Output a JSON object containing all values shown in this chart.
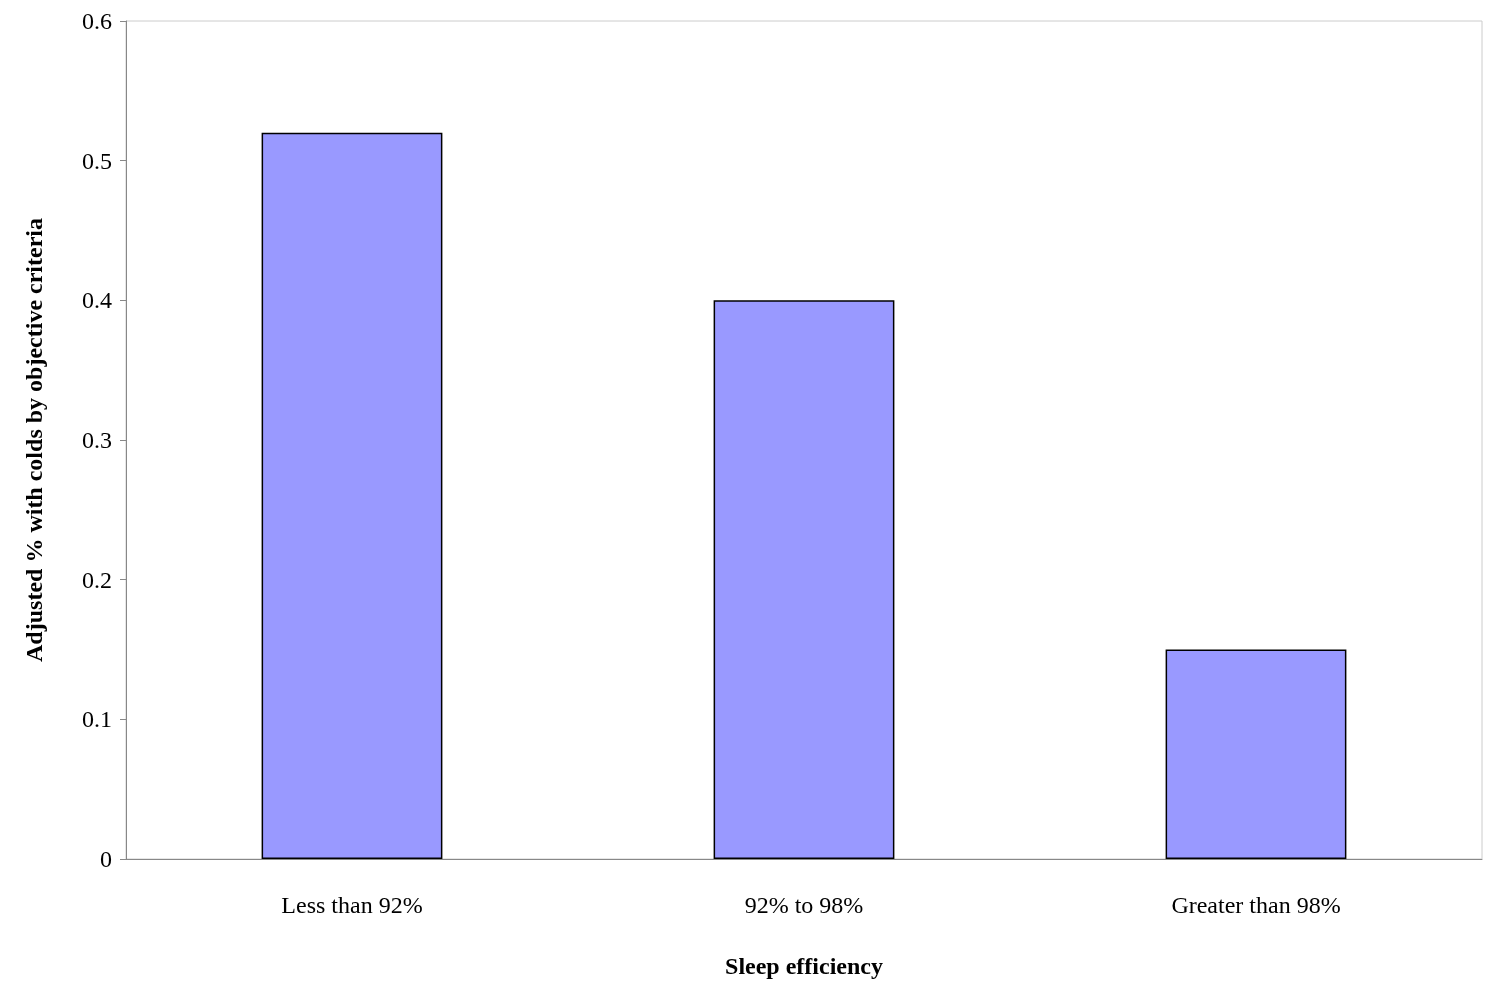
{
  "chart_data": {
    "type": "bar",
    "xlabel": "Sleep efficiency",
    "ylabel": "Adjusted % with colds by objective criteria",
    "categories": [
      "Less than 92%",
      "92% to 98%",
      "Greater than 98%"
    ],
    "values": [
      0.52,
      0.4,
      0.15
    ],
    "color": "#9999ff",
    "ylim": [
      0,
      0.6
    ],
    "yticks": [
      0,
      0.1,
      0.2,
      0.3,
      0.4,
      0.5,
      0.6
    ],
    "grid": false
  }
}
